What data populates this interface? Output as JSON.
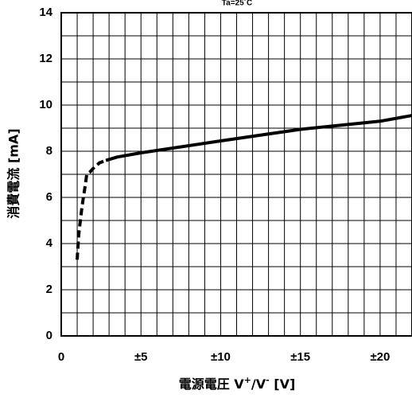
{
  "chart_data": {
    "type": "line",
    "condition_label": "Ta=25˚C",
    "xlabel_prefix": "電源電圧 V",
    "xlabel_sup1": "+",
    "xlabel_mid": "/V",
    "xlabel_sup2": "-",
    "xlabel_suffix": " [V]",
    "ylabel": "消費電流 [mA]",
    "xlim": [
      0,
      22
    ],
    "ylim": [
      0,
      14
    ],
    "x_ticks": [
      0,
      5,
      10,
      15,
      20
    ],
    "x_tick_labels": [
      "0",
      "±5",
      "±10",
      "±15",
      "±20"
    ],
    "y_ticks": [
      0,
      2,
      4,
      6,
      8,
      10,
      12,
      14
    ],
    "y_tick_labels": [
      "0",
      "2",
      "4",
      "6",
      "8",
      "10",
      "12",
      "14"
    ],
    "grid": true,
    "series": [
      {
        "style": "dashed",
        "x": [
          1.0,
          1.1,
          1.3,
          1.5,
          1.6,
          1.8,
          2.0,
          2.4,
          2.8
        ],
        "y": [
          3.3,
          4.4,
          5.6,
          6.5,
          7.0,
          7.1,
          7.25,
          7.5,
          7.6
        ]
      },
      {
        "style": "solid",
        "x": [
          2.8,
          3.5,
          5,
          10,
          15,
          20,
          22
        ],
        "y": [
          7.6,
          7.75,
          7.93,
          8.45,
          8.95,
          9.3,
          9.55
        ]
      }
    ]
  }
}
